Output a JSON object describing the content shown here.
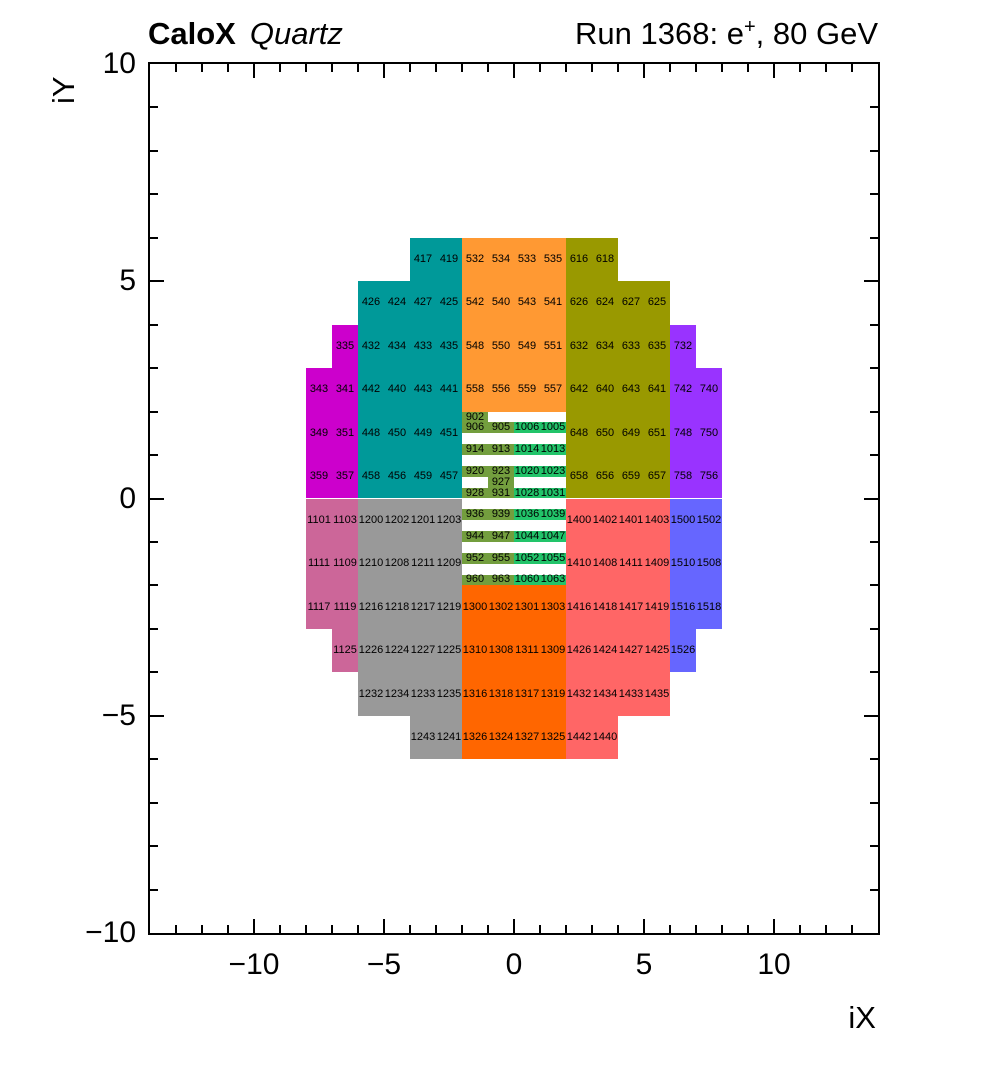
{
  "header": {
    "left_bold": "CaloX",
    "left_italic": "Quartz",
    "right_prefix": "Run 1368: e",
    "right_sup": "+",
    "right_suffix": ", 80 GeV"
  },
  "axes": {
    "x_label": "iX",
    "y_label": "iY",
    "x_tick_values": [
      -10,
      -5,
      0,
      5,
      10
    ],
    "x_tick_labels": [
      "−10",
      "−5",
      "0",
      "5",
      "10"
    ],
    "y_tick_values": [
      10,
      5,
      0,
      -5,
      -10
    ],
    "y_tick_labels": [
      "10",
      "5",
      "0",
      "−5",
      "−10"
    ]
  },
  "colors": {
    "frame": "#000000",
    "background": "#ffffff",
    "text": "#000000"
  },
  "chart_data": {
    "type": "heatmap",
    "title": "CaloX Quartz — Run 1368: e+, 80 GeV",
    "xlabel": "iX",
    "ylabel": "iY",
    "xlim": [
      -14,
      14
    ],
    "ylim": [
      -10,
      10
    ],
    "grid": false,
    "x_major_ticks": [
      -10,
      -5,
      0,
      5,
      10
    ],
    "y_major_ticks": [
      10,
      5,
      0,
      -5,
      -10
    ],
    "cell_format": [
      "channel_id",
      "ix_left",
      "iy_bottom"
    ],
    "regions": [
      {
        "name": "teal-block",
        "color": "#009999",
        "cell_w": 1,
        "cell_h": 1,
        "cells": [
          [
            417,
            -4,
            5
          ],
          [
            419,
            -3,
            5
          ],
          [
            426,
            -6,
            4
          ],
          [
            424,
            -5,
            4
          ],
          [
            427,
            -4,
            4
          ],
          [
            425,
            -3,
            4
          ],
          [
            432,
            -6,
            3
          ],
          [
            434,
            -5,
            3
          ],
          [
            433,
            -4,
            3
          ],
          [
            435,
            -3,
            3
          ],
          [
            442,
            -6,
            2
          ],
          [
            440,
            -5,
            2
          ],
          [
            443,
            -4,
            2
          ],
          [
            441,
            -3,
            2
          ],
          [
            448,
            -6,
            1
          ],
          [
            450,
            -5,
            1
          ],
          [
            449,
            -4,
            1
          ],
          [
            451,
            -3,
            1
          ],
          [
            458,
            -6,
            0
          ],
          [
            456,
            -5,
            0
          ],
          [
            459,
            -4,
            0
          ],
          [
            457,
            -3,
            0
          ]
        ]
      },
      {
        "name": "orange-top-block",
        "color": "#FF9933",
        "cell_w": 1,
        "cell_h": 1,
        "cells": [
          [
            532,
            -2,
            5
          ],
          [
            534,
            -1,
            5
          ],
          [
            533,
            0,
            5
          ],
          [
            535,
            1,
            5
          ],
          [
            542,
            -2,
            4
          ],
          [
            540,
            -1,
            4
          ],
          [
            543,
            0,
            4
          ],
          [
            541,
            1,
            4
          ],
          [
            548,
            -2,
            3
          ],
          [
            550,
            -1,
            3
          ],
          [
            549,
            0,
            3
          ],
          [
            551,
            1,
            3
          ],
          [
            558,
            -2,
            2
          ],
          [
            556,
            -1,
            2
          ],
          [
            559,
            0,
            2
          ],
          [
            557,
            1,
            2
          ]
        ]
      },
      {
        "name": "olive-block",
        "color": "#999900",
        "cell_w": 1,
        "cell_h": 1,
        "cells": [
          [
            616,
            2,
            5
          ],
          [
            618,
            3,
            5
          ],
          [
            626,
            2,
            4
          ],
          [
            624,
            3,
            4
          ],
          [
            627,
            4,
            4
          ],
          [
            625,
            5,
            4
          ],
          [
            632,
            2,
            3
          ],
          [
            634,
            3,
            3
          ],
          [
            633,
            4,
            3
          ],
          [
            635,
            5,
            3
          ],
          [
            642,
            2,
            2
          ],
          [
            640,
            3,
            2
          ],
          [
            643,
            4,
            2
          ],
          [
            641,
            5,
            2
          ],
          [
            648,
            2,
            1
          ],
          [
            650,
            3,
            1
          ],
          [
            649,
            4,
            1
          ],
          [
            651,
            5,
            1
          ],
          [
            658,
            2,
            0
          ],
          [
            656,
            3,
            0
          ],
          [
            659,
            4,
            0
          ],
          [
            657,
            5,
            0
          ]
        ]
      },
      {
        "name": "magenta-block",
        "color": "#CC00CC",
        "cell_w": 1,
        "cell_h": 1,
        "cells": [
          [
            335,
            -7,
            3
          ],
          [
            343,
            -8,
            2
          ],
          [
            341,
            -7,
            2
          ],
          [
            349,
            -8,
            1
          ],
          [
            351,
            -7,
            1
          ],
          [
            359,
            -8,
            0
          ],
          [
            357,
            -7,
            0
          ]
        ]
      },
      {
        "name": "purple-block",
        "color": "#9933FF",
        "cell_w": 1,
        "cell_h": 1,
        "cells": [
          [
            732,
            6,
            3
          ],
          [
            742,
            6,
            2
          ],
          [
            740,
            7,
            2
          ],
          [
            748,
            6,
            1
          ],
          [
            750,
            7,
            1
          ],
          [
            758,
            6,
            0
          ],
          [
            756,
            7,
            0
          ]
        ]
      },
      {
        "name": "olive-green-strips",
        "color": "#739E3E",
        "cell_w": 1,
        "cell_h": 0.25,
        "cells": [
          [
            902,
            -2,
            1.75
          ],
          [
            906,
            -2,
            1.5
          ],
          [
            905,
            -1,
            1.5
          ],
          [
            914,
            -2,
            1.0
          ],
          [
            913,
            -1,
            1.0
          ],
          [
            920,
            -2,
            0.5
          ],
          [
            923,
            -1,
            0.5
          ],
          [
            927,
            -1,
            0.25
          ],
          [
            928,
            -2,
            0.0
          ],
          [
            931,
            -1,
            0.0
          ],
          [
            936,
            -2,
            -0.5
          ],
          [
            939,
            -1,
            -0.5
          ],
          [
            944,
            -2,
            -1.0
          ],
          [
            947,
            -1,
            -1.0
          ],
          [
            952,
            -2,
            -1.5
          ],
          [
            955,
            -1,
            -1.5
          ],
          [
            960,
            -2,
            -2.0
          ],
          [
            963,
            -1,
            -2.0
          ]
        ]
      },
      {
        "name": "bright-green-strips",
        "color": "#22C46A",
        "cell_w": 1,
        "cell_h": 0.25,
        "cells": [
          [
            1006,
            0,
            1.5
          ],
          [
            1005,
            1,
            1.5
          ],
          [
            1014,
            0,
            1.0
          ],
          [
            1013,
            1,
            1.0
          ],
          [
            1020,
            0,
            0.5
          ],
          [
            1023,
            1,
            0.5
          ],
          [
            1028,
            0,
            0.0
          ],
          [
            1031,
            1,
            0.0
          ],
          [
            1036,
            0,
            -0.5
          ],
          [
            1039,
            1,
            -0.5
          ],
          [
            1044,
            0,
            -1.0
          ],
          [
            1047,
            1,
            -1.0
          ],
          [
            1052,
            0,
            -1.5
          ],
          [
            1055,
            1,
            -1.5
          ],
          [
            1060,
            0,
            -2.0
          ],
          [
            1063,
            1,
            -2.0
          ]
        ]
      },
      {
        "name": "pink-block",
        "color": "#CC6699",
        "cell_w": 1,
        "cell_h": 1,
        "cells": [
          [
            1101,
            -8,
            -1
          ],
          [
            1103,
            -7,
            -1
          ],
          [
            1111,
            -8,
            -2
          ],
          [
            1109,
            -7,
            -2
          ],
          [
            1117,
            -8,
            -3
          ],
          [
            1119,
            -7,
            -3
          ],
          [
            1125,
            -7,
            -4
          ]
        ]
      },
      {
        "name": "gray-block",
        "color": "#999999",
        "cell_w": 1,
        "cell_h": 1,
        "cells": [
          [
            1200,
            -6,
            -1
          ],
          [
            1202,
            -5,
            -1
          ],
          [
            1201,
            -4,
            -1
          ],
          [
            1203,
            -3,
            -1
          ],
          [
            1210,
            -6,
            -2
          ],
          [
            1208,
            -5,
            -2
          ],
          [
            1211,
            -4,
            -2
          ],
          [
            1209,
            -3,
            -2
          ],
          [
            1216,
            -6,
            -3
          ],
          [
            1218,
            -5,
            -3
          ],
          [
            1217,
            -4,
            -3
          ],
          [
            1219,
            -3,
            -3
          ],
          [
            1226,
            -6,
            -4
          ],
          [
            1224,
            -5,
            -4
          ],
          [
            1227,
            -4,
            -4
          ],
          [
            1225,
            -3,
            -4
          ],
          [
            1232,
            -6,
            -5
          ],
          [
            1234,
            -5,
            -5
          ],
          [
            1233,
            -4,
            -5
          ],
          [
            1235,
            -3,
            -5
          ],
          [
            1243,
            -4,
            -6
          ],
          [
            1241,
            -3,
            -6
          ]
        ]
      },
      {
        "name": "orange-bottom-block",
        "color": "#FF6600",
        "cell_w": 1,
        "cell_h": 1,
        "cells": [
          [
            1300,
            -2,
            -3
          ],
          [
            1302,
            -1,
            -3
          ],
          [
            1301,
            0,
            -3
          ],
          [
            1303,
            1,
            -3
          ],
          [
            1310,
            -2,
            -4
          ],
          [
            1308,
            -1,
            -4
          ],
          [
            1311,
            0,
            -4
          ],
          [
            1309,
            1,
            -4
          ],
          [
            1316,
            -2,
            -5
          ],
          [
            1318,
            -1,
            -5
          ],
          [
            1317,
            0,
            -5
          ],
          [
            1319,
            1,
            -5
          ],
          [
            1326,
            -2,
            -6
          ],
          [
            1324,
            -1,
            -6
          ],
          [
            1327,
            0,
            -6
          ],
          [
            1325,
            1,
            -6
          ]
        ]
      },
      {
        "name": "red-block",
        "color": "#FF6666",
        "cell_w": 1,
        "cell_h": 1,
        "cells": [
          [
            1400,
            2,
            -1
          ],
          [
            1402,
            3,
            -1
          ],
          [
            1401,
            4,
            -1
          ],
          [
            1403,
            5,
            -1
          ],
          [
            1410,
            2,
            -2
          ],
          [
            1408,
            3,
            -2
          ],
          [
            1411,
            4,
            -2
          ],
          [
            1409,
            5,
            -2
          ],
          [
            1416,
            2,
            -3
          ],
          [
            1418,
            3,
            -3
          ],
          [
            1417,
            4,
            -3
          ],
          [
            1419,
            5,
            -3
          ],
          [
            1426,
            2,
            -4
          ],
          [
            1424,
            3,
            -4
          ],
          [
            1427,
            4,
            -4
          ],
          [
            1425,
            5,
            -4
          ],
          [
            1432,
            2,
            -5
          ],
          [
            1434,
            3,
            -5
          ],
          [
            1433,
            4,
            -5
          ],
          [
            1435,
            5,
            -5
          ],
          [
            1442,
            2,
            -6
          ],
          [
            1440,
            3,
            -6
          ]
        ]
      },
      {
        "name": "blue-block",
        "color": "#6666FF",
        "cell_w": 1,
        "cell_h": 1,
        "cells": [
          [
            1500,
            6,
            -1
          ],
          [
            1502,
            7,
            -1
          ],
          [
            1510,
            6,
            -2
          ],
          [
            1508,
            7,
            -2
          ],
          [
            1516,
            6,
            -3
          ],
          [
            1518,
            7,
            -3
          ],
          [
            1526,
            6,
            -4
          ]
        ]
      }
    ]
  }
}
